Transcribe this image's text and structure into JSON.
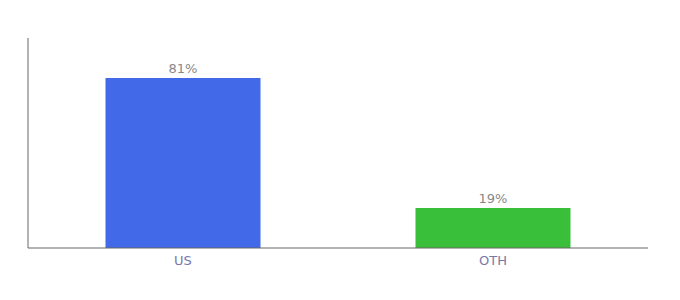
{
  "chart_data": {
    "type": "bar",
    "categories": [
      "US",
      "OTH"
    ],
    "values": [
      81,
      19
    ],
    "value_labels": [
      "81%",
      "19%"
    ],
    "colors": [
      "#4169e8",
      "#3abf3a"
    ],
    "ylim": [
      0,
      100
    ],
    "data_labels": true,
    "tick_labels": "x",
    "grid": false
  }
}
